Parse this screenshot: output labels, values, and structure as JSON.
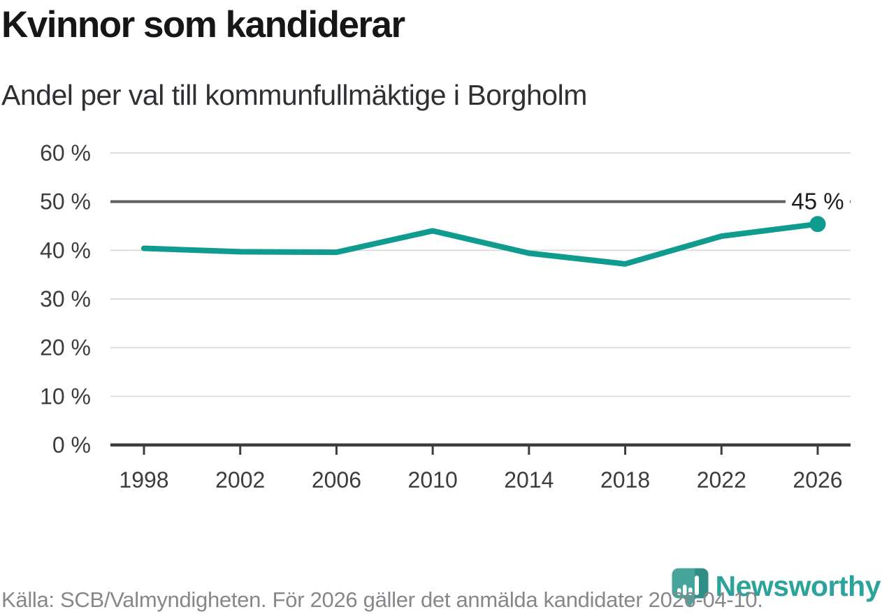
{
  "chart_data": {
    "type": "line",
    "title": "Kvinnor som kandiderar",
    "subtitle": "Andel per val till kommunfullmäktige i Borgholm",
    "x": [
      1998,
      2002,
      2006,
      2010,
      2014,
      2018,
      2022,
      2026
    ],
    "xtick_labels": [
      "1998",
      "2002",
      "2006",
      "2010",
      "2014",
      "2018",
      "2022",
      "2026"
    ],
    "values": [
      40.4,
      39.7,
      39.6,
      44.0,
      39.4,
      37.2,
      42.9,
      45.4
    ],
    "unit": "%",
    "ylim": [
      0,
      60
    ],
    "ytick_values": [
      0,
      10,
      20,
      30,
      40,
      50,
      60
    ],
    "ytick_labels": [
      "0 %",
      "10 %",
      "20 %",
      "30 %",
      "40 %",
      "50 %",
      "60 %"
    ],
    "reference_line": 50,
    "end_label": "45 %",
    "grid": true,
    "legend": false,
    "colors": {
      "line": "#0f9b8d",
      "grid": "#dcdcdc",
      "reference": "#5b6064",
      "axis": "#3a3e41",
      "tick_text": "#3a3d40",
      "end_label_text": "#1d1d1b"
    }
  },
  "footer": {
    "source": "Källa: SCB/Valmyndigheten. För 2026 gäller det anmälda kandidater 2026-04-10."
  },
  "branding": {
    "name": "Newsworthy",
    "color": "#2ba39a",
    "pin_color": "#46a49b",
    "pin_shade": "#2f8e86",
    "bar_color": "#ffffff"
  }
}
